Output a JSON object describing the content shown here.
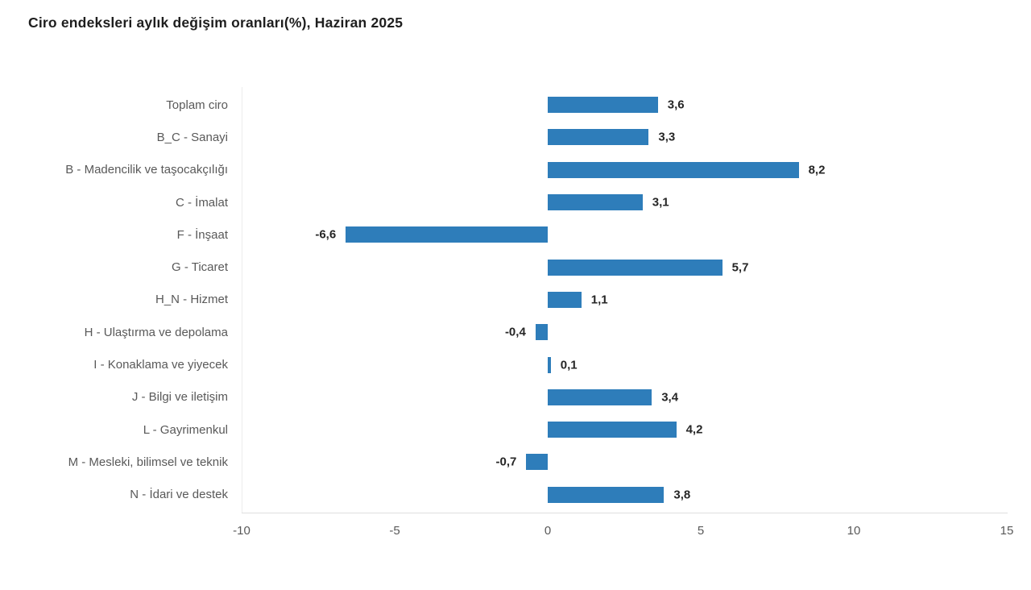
{
  "title": "Ciro endeksleri aylık değişim oranları(%), Haziran 2025",
  "chart_data": {
    "type": "bar",
    "orientation": "horizontal",
    "title": "Ciro endeksleri aylık değişim oranları(%), Haziran 2025",
    "categories": [
      "Toplam ciro",
      "B_C - Sanayi",
      "B - Madencilik ve taşocakçılığı",
      "C - İmalat",
      "F - İnşaat",
      "G - Ticaret",
      "H_N - Hizmet",
      "H - Ulaştırma ve depolama",
      "I - Konaklama ve yiyecek",
      "J - Bilgi ve iletişim",
      "L - Gayrimenkul",
      "M - Mesleki, bilimsel ve teknik",
      "N - İdari ve destek"
    ],
    "values": [
      3.6,
      3.3,
      8.2,
      3.1,
      -6.6,
      5.7,
      1.1,
      -0.4,
      0.1,
      3.4,
      4.2,
      -0.7,
      3.8
    ],
    "value_labels": [
      "3,6",
      "3,3",
      "8,2",
      "3,1",
      "-6,6",
      "5,7",
      "1,1",
      "-0,4",
      "0,1",
      "3,4",
      "4,2",
      "-0,7",
      "3,8"
    ],
    "xlabel": "",
    "ylabel": "",
    "xlim": [
      -10,
      15
    ],
    "x_ticks": [
      -10,
      -5,
      0,
      5,
      10,
      15
    ],
    "x_tick_labels": [
      "-10",
      "-5",
      "0",
      "5",
      "10",
      "15"
    ],
    "bar_color": "#2e7dba",
    "grid": false,
    "legend": false
  }
}
